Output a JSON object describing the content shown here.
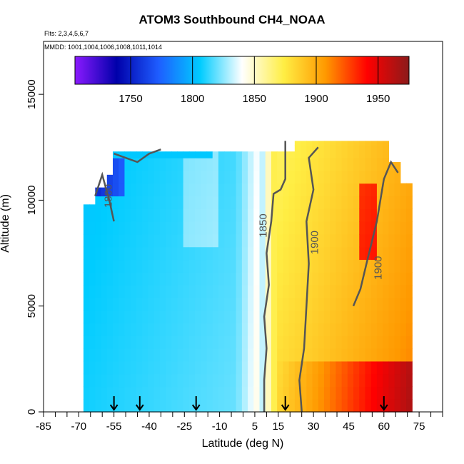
{
  "chart_data": {
    "type": "heatmap",
    "title": "ATOM3 Southbound CH4_NOAA",
    "notes": [
      "Flts: 2,3,4,5,6,7",
      "MMDD: 1001,1004,1006,1008,1011,1014"
    ],
    "xlabel": "Latitude (deg N)",
    "ylabel": "Altitude (m)",
    "xlim": [
      -85,
      85
    ],
    "ylim": [
      0,
      17500
    ],
    "x_ticks": [
      "-85",
      "-70",
      "-55",
      "-40",
      "-25",
      "-10",
      "5",
      "15",
      "30",
      "45",
      "60",
      "75"
    ],
    "x_tick_values": [
      -85,
      -70,
      -55,
      -40,
      -25,
      -10,
      5,
      15,
      30,
      45,
      60,
      75
    ],
    "y_ticks": [
      "0",
      "5000",
      "10000",
      "15000"
    ],
    "y_tick_values": [
      0,
      5000,
      10000,
      15000
    ],
    "colorbar": {
      "min": 1705,
      "max": 1975,
      "tick_labels": [
        "1750",
        "1800",
        "1850",
        "1900",
        "1950"
      ],
      "tick_values": [
        1750,
        1800,
        1850,
        1900,
        1950
      ],
      "colors": [
        "#8b1aff",
        "#0000aa",
        "#1e5dff",
        "#00ccff",
        "#ffffff",
        "#ffee44",
        "#ff9900",
        "#ff0000",
        "#8b1a1a"
      ]
    },
    "contours": [
      {
        "label": "1800",
        "lat": -56,
        "alt": 10200
      },
      {
        "label": "1850",
        "lat": 10,
        "alt": 8800
      },
      {
        "label": "1900",
        "lat": 32,
        "alt": 8000
      },
      {
        "label": "1900",
        "lat": 59,
        "alt": 6800
      }
    ],
    "flight_marker_latitudes": [
      -55,
      -44,
      -20,
      18,
      60
    ],
    "data_extent": {
      "lat_min": -68,
      "lat_max": 71,
      "alt_min": 0,
      "alt_max": 12800
    },
    "field_description": "CH4 low (~1780-1820 ppb) south of ~5N, sharp transition near 10-15N, high (~1880-1940 ppb) in the northern hemisphere, maximum near surface at 45-65N"
  }
}
